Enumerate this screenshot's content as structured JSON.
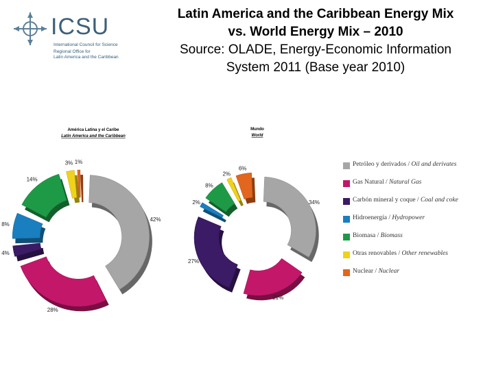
{
  "logo": {
    "name": "ICSU",
    "line1": "International Council for Science",
    "line2": "Regional Office for",
    "line3": "Latin America and the Caribbean"
  },
  "title": {
    "line1": "Latin America and the Caribbean Energy Mix",
    "line2": "vs. World Energy Mix – 2010",
    "line3": "Source: OLADE, Energy-Economic Information",
    "line4": "System 2011 (Base year 2010)"
  },
  "legend": [
    {
      "es": "Petróleo y derivados",
      "en": "Oil and derivates",
      "color": "#a6a6a6"
    },
    {
      "es": "Gas Natural",
      "en": "Natural Gas",
      "color": "#c3176a"
    },
    {
      "es": "Carbón mineral y coque",
      "en": "Coal and coke",
      "color": "#3b1a66"
    },
    {
      "es": "Hidroenergía",
      "en": "Hydropower",
      "color": "#1a7fbf"
    },
    {
      "es": "Biomasa",
      "en": "Biomass",
      "color": "#1e9a46"
    },
    {
      "es": "Otras renovables",
      "en": "Other renewables",
      "color": "#f0d21b"
    },
    {
      "es": "Nuclear",
      "en": "Nuclear",
      "color": "#e2661e"
    }
  ],
  "chart_data": [
    {
      "type": "pie",
      "variant": "exploded-donut-3d",
      "title_es": "América Latina y el Caribe",
      "title_en": "Latin America and the Caribbean",
      "categories": [
        "Oil and derivates",
        "Natural Gas",
        "Coal and coke",
        "Hydropower",
        "Biomass",
        "Other renewables",
        "Nuclear"
      ],
      "values": [
        42,
        28,
        4,
        8,
        14,
        3,
        1
      ],
      "labels": [
        "42%",
        "28%",
        "4%",
        "8%",
        "14%",
        "3%",
        "1%"
      ]
    },
    {
      "type": "pie",
      "variant": "exploded-donut-3d",
      "title_es": "Mundo",
      "title_en": "World",
      "categories": [
        "Oil and derivates",
        "Natural Gas",
        "Coal and coke",
        "Hydropower",
        "Biomass",
        "Other renewables",
        "Nuclear"
      ],
      "values": [
        34,
        21,
        27,
        2,
        8,
        2,
        6
      ],
      "labels": [
        "34%",
        "21%",
        "27%",
        "2%",
        "8%",
        "2%",
        "6%"
      ]
    }
  ]
}
